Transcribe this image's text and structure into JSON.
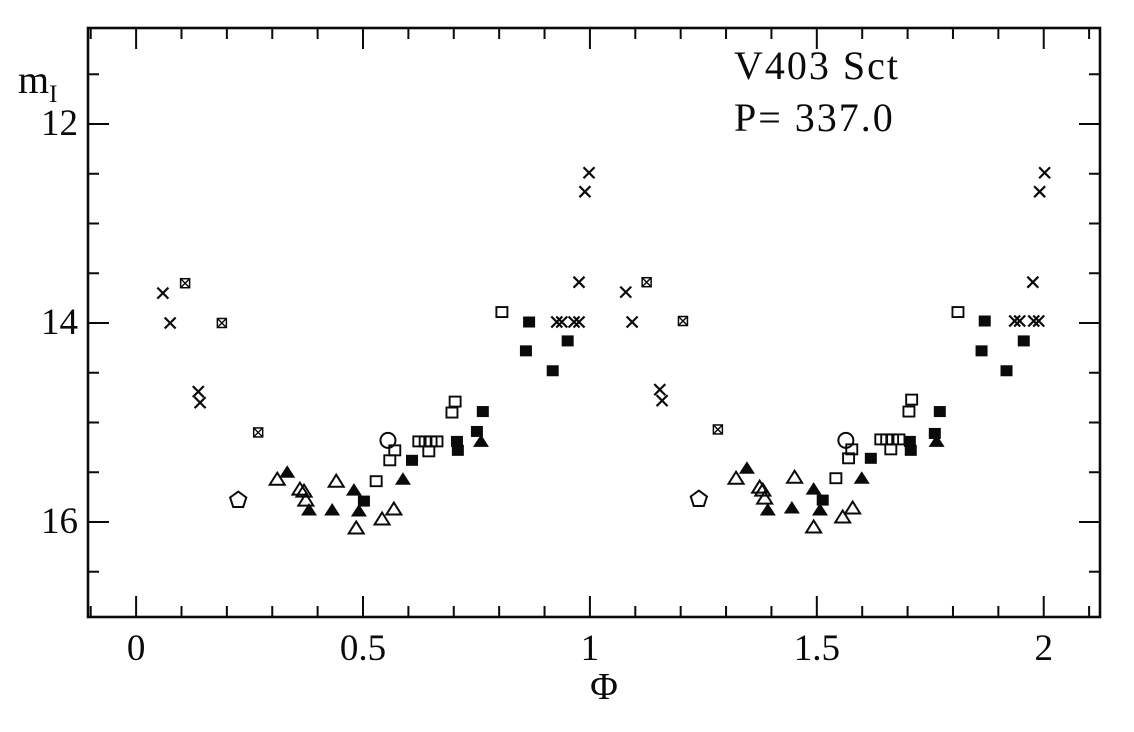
{
  "title": {
    "star": "V403 Sct",
    "period": "P= 337.0"
  },
  "axes": {
    "x_label": "Φ",
    "y_label_base": "m",
    "y_label_sub": "I",
    "x_ticks": [
      {
        "value": 0,
        "label": "0"
      },
      {
        "value": 0.5,
        "label": "0.5"
      },
      {
        "value": 1,
        "label": "1"
      },
      {
        "value": 1.5,
        "label": "1.5"
      },
      {
        "value": 2,
        "label": "2"
      }
    ],
    "y_ticks": [
      {
        "value": 12,
        "label": "12"
      },
      {
        "value": 14,
        "label": "14"
      },
      {
        "value": 16,
        "label": "16"
      }
    ]
  },
  "chart_data": {
    "type": "scatter",
    "title": "V403 Sct",
    "annotation": "P= 337.0",
    "xlabel": "Φ",
    "ylabel": "m_I",
    "xlim": [
      -0.106,
      2.124
    ],
    "ylim": [
      11.035,
      16.955
    ],
    "y_axis_inverted": true,
    "grid": false,
    "legend": "none",
    "x_major_ticks": [
      0,
      0.5,
      1,
      1.5,
      2
    ],
    "x_minor_step": 0.1,
    "y_major_ticks": [
      12,
      14,
      16
    ],
    "y_minor_step": 0.5,
    "ink_color": "#0a0a0a",
    "series": [
      {
        "name": "cross",
        "marker": "x",
        "points": [
          [
            0.059,
            13.7
          ],
          [
            0.075,
            14.0
          ],
          [
            0.137,
            14.69
          ],
          [
            0.141,
            14.8
          ],
          [
            0.927,
            13.99
          ],
          [
            0.938,
            13.99
          ],
          [
            0.965,
            13.99
          ],
          [
            0.976,
            13.99
          ],
          [
            0.976,
            13.59
          ],
          [
            0.989,
            12.68
          ],
          [
            0.998,
            12.49
          ],
          [
            1.079,
            13.69
          ],
          [
            1.093,
            13.99
          ],
          [
            1.154,
            14.67
          ],
          [
            1.159,
            14.78
          ],
          [
            1.936,
            13.98
          ],
          [
            1.947,
            13.98
          ],
          [
            1.978,
            13.98
          ],
          [
            1.989,
            13.98
          ],
          [
            1.976,
            13.59
          ],
          [
            1.991,
            12.68
          ],
          [
            2.002,
            12.49
          ]
        ]
      },
      {
        "name": "square-cross",
        "marker": "boxed-x",
        "points": [
          [
            0.108,
            13.6
          ],
          [
            0.189,
            14.0
          ],
          [
            0.269,
            15.1
          ],
          [
            1.125,
            13.59
          ],
          [
            1.205,
            13.98
          ],
          [
            1.282,
            15.07
          ]
        ]
      },
      {
        "name": "open-circle",
        "marker": "circle-open",
        "points": [
          [
            0.555,
            15.18
          ],
          [
            1.564,
            15.18
          ]
        ]
      },
      {
        "name": "open-pentagon",
        "marker": "pentagon-open",
        "points": [
          [
            0.225,
            15.78
          ],
          [
            1.24,
            15.77
          ]
        ]
      },
      {
        "name": "open-square",
        "marker": "square-open",
        "points": [
          [
            0.806,
            13.89
          ],
          [
            0.703,
            14.79
          ],
          [
            0.696,
            14.9
          ],
          [
            0.623,
            15.19
          ],
          [
            0.637,
            15.19
          ],
          [
            0.65,
            15.19
          ],
          [
            0.663,
            15.19
          ],
          [
            0.645,
            15.29
          ],
          [
            0.57,
            15.28
          ],
          [
            0.559,
            15.38
          ],
          [
            0.529,
            15.59
          ],
          [
            1.811,
            13.89
          ],
          [
            1.709,
            14.77
          ],
          [
            1.703,
            14.89
          ],
          [
            1.641,
            15.17
          ],
          [
            1.654,
            15.17
          ],
          [
            1.667,
            15.17
          ],
          [
            1.681,
            15.17
          ],
          [
            1.663,
            15.27
          ],
          [
            1.577,
            15.27
          ],
          [
            1.57,
            15.36
          ],
          [
            1.542,
            15.56
          ]
        ]
      },
      {
        "name": "filled-square",
        "marker": "square-filled",
        "points": [
          [
            0.866,
            13.99
          ],
          [
            0.859,
            14.28
          ],
          [
            0.951,
            14.18
          ],
          [
            0.918,
            14.48
          ],
          [
            0.764,
            14.89
          ],
          [
            0.751,
            15.09
          ],
          [
            0.707,
            15.19
          ],
          [
            0.709,
            15.28
          ],
          [
            0.608,
            15.38
          ],
          [
            0.502,
            15.79
          ],
          [
            1.87,
            13.98
          ],
          [
            1.863,
            14.28
          ],
          [
            1.956,
            14.18
          ],
          [
            1.918,
            14.48
          ],
          [
            1.771,
            14.89
          ],
          [
            1.76,
            15.11
          ],
          [
            1.705,
            15.19
          ],
          [
            1.707,
            15.28
          ],
          [
            1.619,
            15.36
          ],
          [
            1.513,
            15.78
          ]
        ]
      },
      {
        "name": "filled-triangle",
        "marker": "triangle-filled",
        "points": [
          [
            0.333,
            15.5
          ],
          [
            0.381,
            15.88
          ],
          [
            0.432,
            15.88
          ],
          [
            0.48,
            15.68
          ],
          [
            0.491,
            15.89
          ],
          [
            0.588,
            15.57
          ],
          [
            0.76,
            15.19
          ],
          [
            1.346,
            15.46
          ],
          [
            1.392,
            15.88
          ],
          [
            1.445,
            15.86
          ],
          [
            1.493,
            15.67
          ],
          [
            1.507,
            15.88
          ],
          [
            1.599,
            15.56
          ],
          [
            1.764,
            15.19
          ]
        ]
      },
      {
        "name": "open-triangle",
        "marker": "triangle-open",
        "points": [
          [
            0.311,
            15.57
          ],
          [
            0.361,
            15.67
          ],
          [
            0.37,
            15.69
          ],
          [
            0.374,
            15.78
          ],
          [
            0.441,
            15.59
          ],
          [
            0.485,
            16.06
          ],
          [
            0.542,
            15.97
          ],
          [
            0.568,
            15.87
          ],
          [
            1.322,
            15.56
          ],
          [
            1.374,
            15.65
          ],
          [
            1.381,
            15.68
          ],
          [
            1.385,
            15.76
          ],
          [
            1.451,
            15.55
          ],
          [
            1.493,
            16.05
          ],
          [
            1.557,
            15.95
          ],
          [
            1.579,
            15.86
          ]
        ]
      }
    ]
  }
}
